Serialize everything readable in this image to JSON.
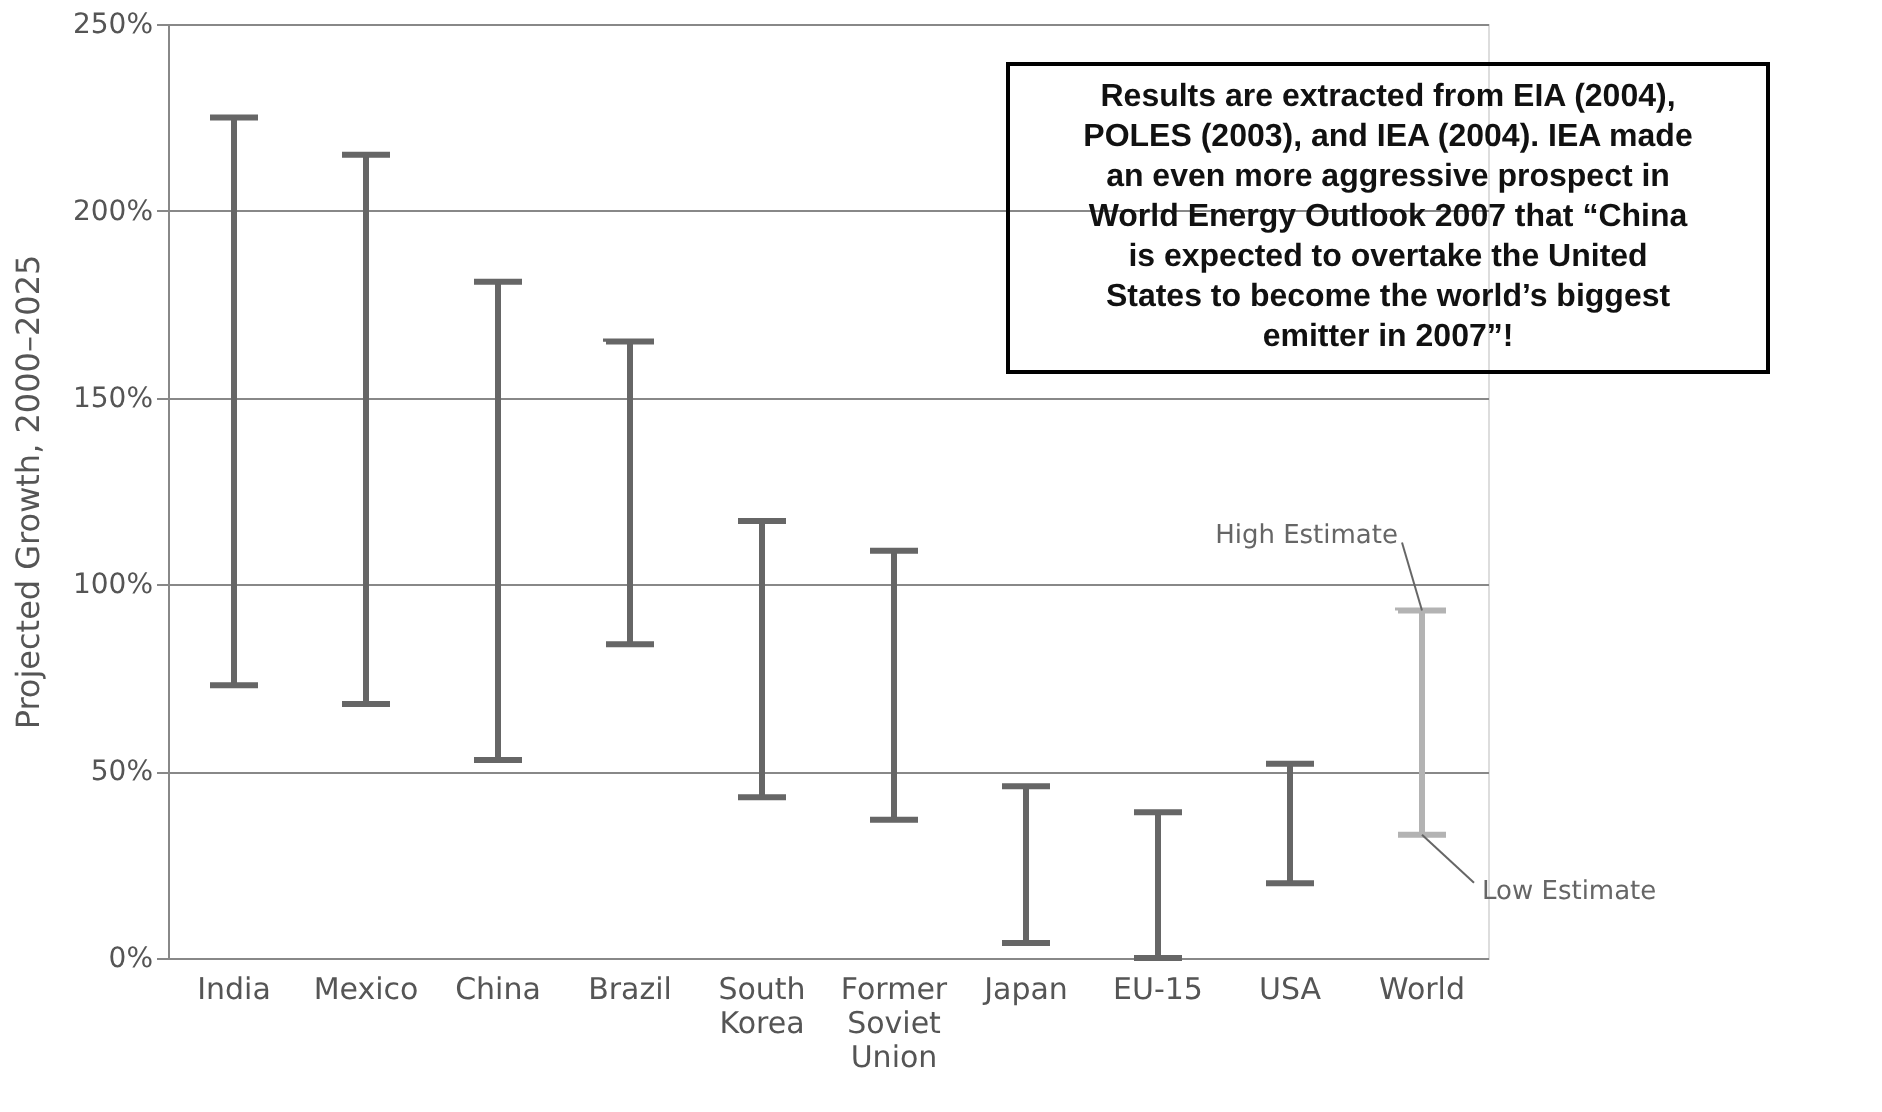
{
  "chart_data": {
    "type": "bar",
    "ylabel": "Projected Growth, 2000–2025",
    "categories": [
      "India",
      "Mexico",
      "China",
      "Brazil",
      "South Korea",
      "Former Soviet Union",
      "Japan",
      "EU-15",
      "USA",
      "World"
    ],
    "base": [
      73,
      68,
      53,
      84,
      43,
      37,
      4,
      0,
      20,
      33
    ],
    "values": [
      152,
      147,
      128,
      81,
      74,
      72,
      42,
      39,
      32,
      60
    ],
    "colors": [
      "#666666",
      "#666666",
      "#666666",
      "#666666",
      "#666666",
      "#666666",
      "#666666",
      "#666666",
      "#666666",
      "#b3b3b3"
    ],
    "ylim": [
      0,
      250
    ],
    "yticks": [
      {
        "value": 0,
        "label": "0%"
      },
      {
        "value": 50,
        "label": "50%"
      },
      {
        "value": 100,
        "label": "100%"
      },
      {
        "value": 150,
        "label": "150%"
      },
      {
        "value": 200,
        "label": "200%"
      },
      {
        "value": 250,
        "label": "250%"
      }
    ],
    "grid": "y",
    "annotations": [
      "Results are extracted from EIA (2004), POLES (2003), and IEA (2004). IEA made an even more aggressive prospect in World Energy Outlook 2007 that “China is expected to overtake the United States to become the world’s biggest emitter in 2007”!",
      {
        "text": "High Estimate",
        "x": "World",
        "y": 93
      },
      {
        "text": "Low Estimate",
        "x": "World",
        "y": 33
      }
    ]
  }
}
